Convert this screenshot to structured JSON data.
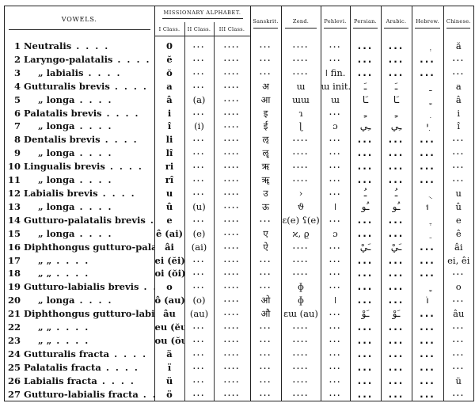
{
  "header": {
    "vowels": "VOWELS.",
    "missionary_alphabet": "MISSIONARY ALPHABET.",
    "class_1": "I Class.",
    "class_2": "II Class.",
    "class_3": "III Class.",
    "sanskrit": "Sanskrit.",
    "zend": "Zend.",
    "pehlevi": "Pehlevi.",
    "persian": "Persian.",
    "arabic": "Arabic.",
    "hebrew": "Hebrew.",
    "chinese": "Chinese."
  },
  "rows": [
    {
      "num": "1",
      "name": "Neutralis",
      "cells": [
        "0",
        "...",
        "....",
        "...",
        "....",
        "...",
        "...",
        "...",
        "ְ",
        "ă"
      ]
    },
    {
      "num": "2",
      "name": "Laryngo-palatalis",
      "cells": [
        "ĕ",
        "...",
        "....",
        "...",
        "....",
        "...",
        "...",
        "...",
        "...",
        "..."
      ]
    },
    {
      "num": "3",
      "name": "„ labialis",
      "cells": [
        "ŏ",
        "...",
        "....",
        "...",
        "....",
        "ǀ fin.",
        "...",
        "...",
        "...",
        "..."
      ]
    },
    {
      "num": "4",
      "name": "Gutturalis brevis",
      "cells": [
        "a",
        "...",
        "....",
        "अ",
        "ɯ",
        "ɯ init.",
        "ـَ",
        "ـَ",
        "ַ",
        "a"
      ]
    },
    {
      "num": "5",
      "name": "„ longa",
      "cells": [
        "â",
        "(a)",
        "....",
        "आ",
        "ɯɯ",
        "ɯ",
        "ـَا",
        "ـَا",
        "ָ",
        "â"
      ]
    },
    {
      "num": "6",
      "name": "Palatalis brevis",
      "cells": [
        "i",
        "...",
        "....",
        "इ",
        "ɿ",
        "...",
        "ـِ",
        "ـِ",
        "ִ",
        "i"
      ]
    },
    {
      "num": "7",
      "name": "„ longa",
      "cells": [
        "î",
        "(i)",
        "....",
        "ई",
        "ɭ",
        "ɔ",
        "ـِي",
        "ـِي",
        "ִי",
        "î"
      ]
    },
    {
      "num": "8",
      "name": "Dentalis brevis",
      "cells": [
        "li",
        "...",
        "....",
        "ऌ",
        "....",
        "...",
        "...",
        "...",
        "...",
        "..."
      ]
    },
    {
      "num": "9",
      "name": "„ longa",
      "cells": [
        "lî",
        "...",
        "....",
        "ॡ",
        "....",
        "...",
        "...",
        "...",
        "...",
        "..."
      ]
    },
    {
      "num": "10",
      "name": "Lingualis brevis",
      "cells": [
        "ri",
        "...",
        "....",
        "ऋ",
        "....",
        "...",
        "...",
        "...",
        "...",
        "..."
      ]
    },
    {
      "num": "11",
      "name": "„ longa",
      "cells": [
        "rî",
        "...",
        "....",
        "ॠ",
        "....",
        "...",
        "...",
        "...",
        "...",
        "..."
      ]
    },
    {
      "num": "12",
      "name": "Labialis brevis",
      "cells": [
        "u",
        "...",
        "....",
        "उ",
        "›",
        "...",
        "ـُ",
        "ـُ",
        "ֻ",
        "u"
      ]
    },
    {
      "num": "13",
      "name": "„ longa",
      "cells": [
        "û",
        "(u)",
        "....",
        "ऊ",
        "ϑ",
        "ǀ",
        "ـُو",
        "ـُو",
        "וּ",
        "û"
      ]
    },
    {
      "num": "14",
      "name": "Gutturo-palatalis brevis",
      "cells": [
        "e",
        "...",
        "....",
        "...",
        "ɛ(e) ʕ(e)",
        "...",
        "...",
        "...",
        "ֶ",
        "e"
      ]
    },
    {
      "num": "15",
      "name": "„ longa",
      "cells": [
        "ê (ai)",
        "(e)",
        "....",
        "ए",
        "ϰ, ϱ",
        "ɔ",
        "...",
        "...",
        "ֵ",
        "ê"
      ]
    },
    {
      "num": "16",
      "name": "Diphthongus gutturo-palatalis",
      "cells": [
        "âi",
        "(ai)",
        "....",
        "ऐ",
        "....",
        "...",
        "ـَيْ",
        "ـَيْ",
        "...",
        "âi"
      ]
    },
    {
      "num": "17",
      "name": "„ „",
      "cells": [
        "ei (ĕi)",
        "...",
        "....",
        "...",
        "....",
        "...",
        "...",
        "...",
        "...",
        "ei, êi"
      ]
    },
    {
      "num": "18",
      "name": "„ „",
      "cells": [
        "oi (ŏi)",
        "...",
        "....",
        "...",
        "....",
        "...",
        "...",
        "...",
        "...",
        "..."
      ]
    },
    {
      "num": "19",
      "name": "Gutturo-labialis brevis",
      "cells": [
        "o",
        "...",
        "....",
        "...",
        "ɸ",
        "...",
        "...",
        "...",
        "ָ",
        "o"
      ]
    },
    {
      "num": "20",
      "name": "„ longa",
      "cells": [
        "ô (au)",
        "(o)",
        "....",
        "ओ",
        "ɸ",
        "ǀ",
        "...",
        "...",
        "וֹ",
        "..."
      ]
    },
    {
      "num": "21",
      "name": "Diphthongus gutturo-labialis",
      "cells": [
        "âu",
        "(au)",
        "....",
        "औ",
        "ɛɯ (au)",
        "...",
        "ـَوْ",
        "ـَوْ",
        "...",
        "âu"
      ]
    },
    {
      "num": "22",
      "name": "„ „",
      "cells": [
        "eu (ĕu)",
        "...",
        "....",
        "...",
        "....",
        "...",
        "...",
        "...",
        "...",
        "..."
      ]
    },
    {
      "num": "23",
      "name": "„ „",
      "cells": [
        "ou (ŏu)",
        "...",
        "....",
        "...",
        "....",
        "...",
        "...",
        "...",
        "...",
        "..."
      ]
    },
    {
      "num": "24",
      "name": "Gutturalis fracta",
      "cells": [
        "ä",
        "...",
        "....",
        "...",
        "....",
        "...",
        "...",
        "...",
        "...",
        "..."
      ]
    },
    {
      "num": "25",
      "name": "Palatalis fracta",
      "cells": [
        "ï",
        "...",
        "....",
        "...",
        "....",
        "...",
        "...",
        "...",
        "...",
        "..."
      ]
    },
    {
      "num": "26",
      "name": "Labialis fracta",
      "cells": [
        "ü",
        "...",
        "....",
        "...",
        "....",
        "...",
        "...",
        "...",
        "...",
        "ü"
      ]
    },
    {
      "num": "27",
      "name": "Gutturo-labialis fracta",
      "cells": [
        "ö",
        "...",
        "....",
        "...",
        "....",
        "...",
        "...",
        "...",
        "...",
        "..."
      ]
    }
  ]
}
